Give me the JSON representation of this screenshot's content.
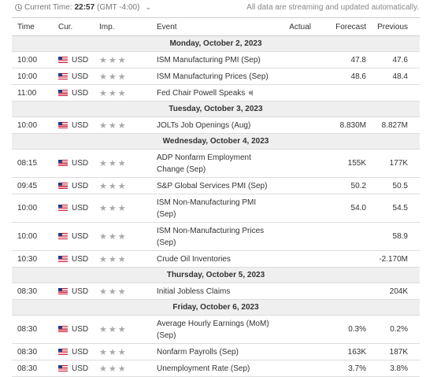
{
  "header": {
    "current_time_label": "Current Time:",
    "current_time": "22:57",
    "timezone": "(GMT -4:00)",
    "streaming_note": "All data are streaming and updated automatically."
  },
  "columns": {
    "time": "Time",
    "currency": "Cur.",
    "importance": "Imp.",
    "event": "Event",
    "actual": "Actual",
    "forecast": "Forecast",
    "previous": "Previous"
  },
  "days": [
    {
      "date": "Monday, October 2, 2023",
      "events": [
        {
          "time": "10:00",
          "currency": "USD",
          "stars": "★★★",
          "event": "ISM Manufacturing PMI (Sep)",
          "actual": "",
          "forecast": "47.8",
          "previous": "47.6"
        },
        {
          "time": "10:00",
          "currency": "USD",
          "stars": "★★★",
          "event": "ISM Manufacturing Prices (Sep)",
          "actual": "",
          "forecast": "48.6",
          "previous": "48.4"
        },
        {
          "time": "11:00",
          "currency": "USD",
          "stars": "★★★",
          "event": "Fed Chair Powell Speaks",
          "actual": "",
          "forecast": "",
          "previous": ""
        }
      ]
    },
    {
      "date": "Tuesday, October 3, 2023",
      "events": [
        {
          "time": "10:00",
          "currency": "USD",
          "stars": "★★★",
          "event": "JOLTs Job Openings (Aug)",
          "actual": "",
          "forecast": "8.830M",
          "previous": "8.827M"
        }
      ]
    },
    {
      "date": "Wednesday, October 4, 2023",
      "events": [
        {
          "time": "08:15",
          "currency": "USD",
          "stars": "★★★",
          "event": "ADP Nonfarm Employment Change (Sep)",
          "actual": "",
          "forecast": "155K",
          "previous": "177K"
        },
        {
          "time": "09:45",
          "currency": "USD",
          "stars": "★★★",
          "event": "S&P Global Services PMI (Sep)",
          "actual": "",
          "forecast": "50.2",
          "previous": "50.5"
        },
        {
          "time": "10:00",
          "currency": "USD",
          "stars": "★★★",
          "event": "ISM Non-Manufacturing PMI (Sep)",
          "actual": "",
          "forecast": "54.0",
          "previous": "54.5"
        },
        {
          "time": "10:00",
          "currency": "USD",
          "stars": "★★★",
          "event": "ISM Non-Manufacturing Prices (Sep)",
          "actual": "",
          "forecast": "",
          "previous": "58.9"
        },
        {
          "time": "10:30",
          "currency": "USD",
          "stars": "★★★",
          "event": "Crude Oil Inventories",
          "actual": "",
          "forecast": "",
          "previous": "-2.170M"
        }
      ]
    },
    {
      "date": "Thursday, October 5, 2023",
      "events": [
        {
          "time": "08:30",
          "currency": "USD",
          "stars": "★★★",
          "event": "Initial Jobless Claims",
          "actual": "",
          "forecast": "",
          "previous": "204K"
        }
      ]
    },
    {
      "date": "Friday, October 6, 2023",
      "events": [
        {
          "time": "08:30",
          "currency": "USD",
          "stars": "★★★",
          "event": "Average Hourly Earnings (MoM) (Sep)",
          "actual": "",
          "forecast": "0.3%",
          "previous": "0.2%"
        },
        {
          "time": "08:30",
          "currency": "USD",
          "stars": "★★★",
          "event": "Nonfarm Payrolls (Sep)",
          "actual": "",
          "forecast": "163K",
          "previous": "187K"
        },
        {
          "time": "08:30",
          "currency": "USD",
          "stars": "★★★",
          "event": "Unemployment Rate (Sep)",
          "actual": "",
          "forecast": "3.7%",
          "previous": "3.8%"
        }
      ]
    }
  ]
}
